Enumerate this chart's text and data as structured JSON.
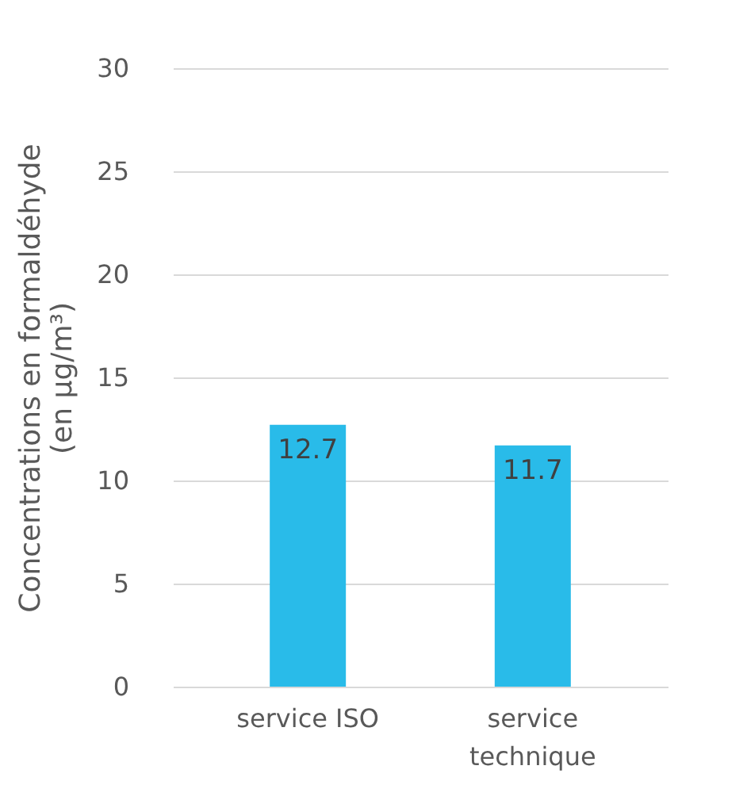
{
  "chart_data": {
    "type": "bar",
    "ylabel": "Concentrations en formaldéhyde (en µg/m³)",
    "categories": [
      "service ISO",
      "service technique"
    ],
    "values": [
      12.7,
      11.7
    ],
    "color": "#29bbe9",
    "ylim": [
      0,
      30
    ],
    "yticks": [
      0,
      5,
      10,
      15,
      20,
      25,
      30
    ],
    "grid": "y",
    "data_labels": true
  }
}
